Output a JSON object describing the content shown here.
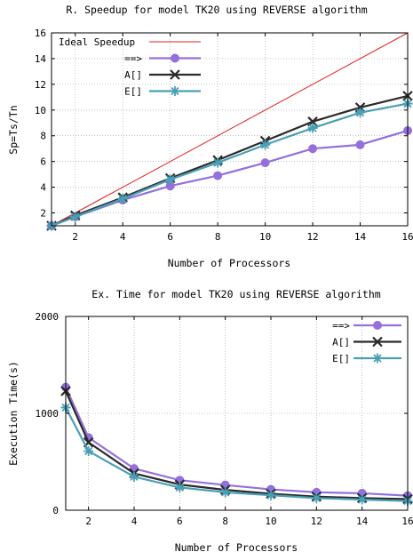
{
  "chart_data": [
    {
      "type": "line",
      "title": "R. Speedup for model TK20 using REVERSE algorithm",
      "xlabel": "Number of Processors",
      "ylabel": "Sp=Ts/Tn",
      "xlim": [
        1,
        16
      ],
      "ylim": [
        1,
        16
      ],
      "xticks": [
        2,
        4,
        6,
        8,
        10,
        12,
        14,
        16
      ],
      "yticks": [
        2,
        4,
        6,
        8,
        10,
        12,
        14,
        16
      ],
      "grid": true,
      "legend_position": "top-left",
      "series": [
        {
          "name": "Ideal Speedup",
          "color": "#e02020",
          "marker": "none",
          "x": [
            1,
            16
          ],
          "values": [
            1,
            16
          ]
        },
        {
          "name": "==>",
          "color": "#9370db",
          "marker": "circle",
          "x": [
            1,
            2,
            4,
            6,
            8,
            10,
            12,
            14,
            16
          ],
          "values": [
            1.0,
            1.7,
            3.0,
            4.1,
            4.9,
            5.9,
            7.0,
            7.3,
            8.4
          ]
        },
        {
          "name": "A[]",
          "color": "#2b2b2b",
          "marker": "x",
          "x": [
            1,
            2,
            4,
            6,
            8,
            10,
            12,
            14,
            16
          ],
          "values": [
            1.0,
            1.8,
            3.2,
            4.7,
            6.1,
            7.6,
            9.1,
            10.2,
            11.1
          ]
        },
        {
          "name": "E[]",
          "color": "#4a9fb5",
          "marker": "star",
          "x": [
            1,
            2,
            4,
            6,
            8,
            10,
            12,
            14,
            16
          ],
          "values": [
            1.0,
            1.7,
            3.1,
            4.6,
            5.9,
            7.3,
            8.6,
            9.8,
            10.5
          ]
        }
      ]
    },
    {
      "type": "line",
      "title": "Ex. Time for model TK20 using REVERSE algorithm",
      "xlabel": "Number of Processors",
      "ylabel": "Execution Time(s)",
      "xlim": [
        1,
        16
      ],
      "ylim": [
        0,
        2000
      ],
      "xticks": [
        2,
        4,
        6,
        8,
        10,
        12,
        14,
        16
      ],
      "yticks": [
        0,
        1000,
        2000
      ],
      "grid": true,
      "legend_position": "top-right",
      "series": [
        {
          "name": "==>",
          "color": "#9370db",
          "marker": "circle",
          "x": [
            1,
            2,
            4,
            6,
            8,
            10,
            12,
            14,
            16
          ],
          "values": [
            1270,
            750,
            430,
            310,
            260,
            215,
            185,
            175,
            150
          ]
        },
        {
          "name": "A[]",
          "color": "#2b2b2b",
          "marker": "x",
          "x": [
            1,
            2,
            4,
            6,
            8,
            10,
            12,
            14,
            16
          ],
          "values": [
            1230,
            700,
            380,
            265,
            210,
            170,
            140,
            125,
            115
          ]
        },
        {
          "name": "E[]",
          "color": "#4a9fb5",
          "marker": "star",
          "x": [
            1,
            2,
            4,
            6,
            8,
            10,
            12,
            14,
            16
          ],
          "values": [
            1060,
            610,
            345,
            235,
            185,
            155,
            125,
            110,
            95
          ]
        }
      ]
    }
  ]
}
